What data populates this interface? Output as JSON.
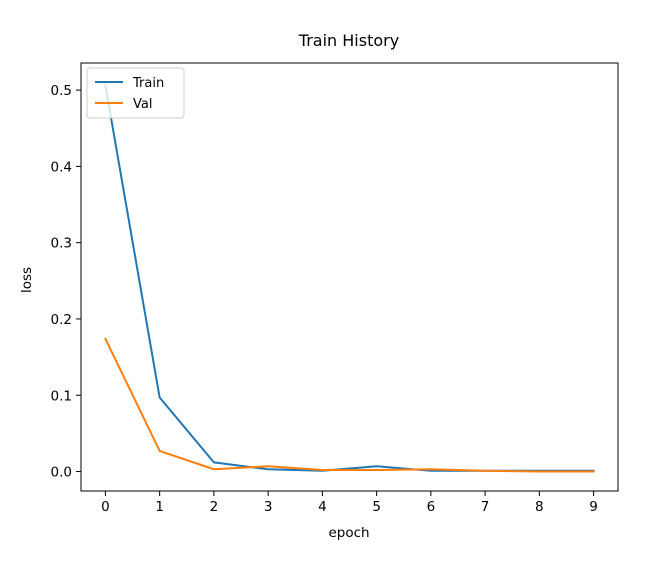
{
  "chart_data": {
    "type": "line",
    "title": "Train History",
    "xlabel": "epoch",
    "ylabel": "loss",
    "x": [
      0,
      1,
      2,
      3,
      4,
      5,
      6,
      7,
      8,
      9
    ],
    "xticks": [
      "0",
      "1",
      "2",
      "3",
      "4",
      "5",
      "6",
      "7",
      "8",
      "9"
    ],
    "yticks": [
      "0.0",
      "0.1",
      "0.2",
      "0.3",
      "0.4",
      "0.5"
    ],
    "ylim": [
      -0.0255,
      0.5355
    ],
    "xlim": [
      -0.45,
      9.45
    ],
    "grid": false,
    "legend_position": "upper left",
    "series": [
      {
        "name": "Train",
        "color": "#1f77b4",
        "values": [
          0.506,
          0.097,
          0.012,
          0.003,
          0.001,
          0.007,
          0.001,
          0.001,
          0.001,
          0.001
        ]
      },
      {
        "name": "Val",
        "color": "#ff7f0e",
        "values": [
          0.174,
          0.027,
          0.003,
          0.007,
          0.002,
          0.002,
          0.003,
          0.001,
          0.0,
          0.0
        ]
      }
    ]
  }
}
